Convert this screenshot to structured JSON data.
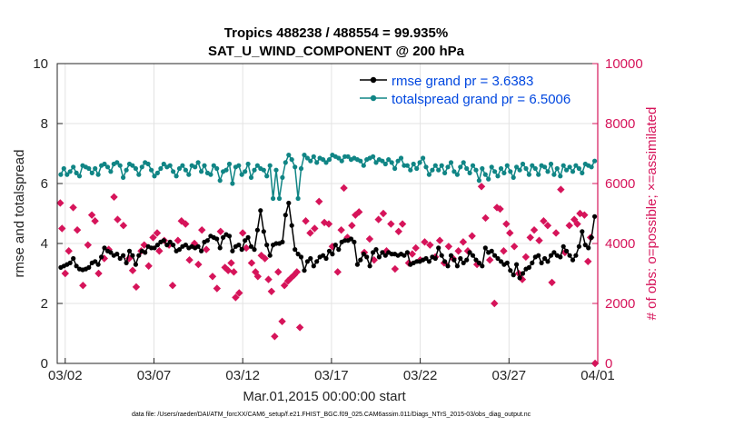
{
  "chart_data": {
    "type": "line",
    "title_line1": "Tropics 488238 / 488554 = 99.935%",
    "title_line2": "SAT_U_WIND_COMPONENT @ 200 hPa",
    "xlabel": "Mar.01,2015 00:00:00 start",
    "ylabel_left": "rmse and totalspread",
    "ylabel_right": "# of obs: o=possible; ×=assimilated",
    "footer": "data file: /Users/raeder/DAI/ATM_forcXX/CAM6_setup/f.e21.FHIST_BGC.f09_025.CAM6assim.011/Diags_NTrS_2015-03/obs_diag_output.nc",
    "x_tick_labels": [
      "03/02",
      "03/07",
      "03/12",
      "03/17",
      "03/22",
      "03/27",
      "04/01"
    ],
    "x_tick_days": [
      1,
      6,
      11,
      16,
      21,
      26,
      31
    ],
    "xlim_days": [
      0.55,
      31
    ],
    "ylim_left": [
      0,
      10
    ],
    "yticks_left": [
      "0",
      "2",
      "4",
      "6",
      "8",
      "10"
    ],
    "ylim_right": [
      0,
      10000
    ],
    "yticks_right": [
      "0",
      "2000",
      "4000",
      "6000",
      "8000",
      "10000"
    ],
    "grid": true,
    "legend_position": "top-right",
    "colors": {
      "rmse": "#000000",
      "spread": "#108585",
      "obs": "#d6145a",
      "legend_text": "#0047e0",
      "right_axis": "#d6145a"
    },
    "series": [
      {
        "name": "rmse grand pr = 3.6383",
        "key": "rmse",
        "values": [
          3.2,
          3.25,
          3.3,
          3.35,
          3.5,
          3.25,
          3.15,
          3.12,
          3.15,
          3.2,
          3.35,
          3.4,
          3.3,
          3.55,
          3.85,
          3.75,
          3.7,
          3.6,
          3.65,
          3.5,
          3.6,
          3.35,
          3.75,
          3.6,
          3.3,
          3.6,
          3.75,
          3.7,
          3.9,
          3.85,
          3.85,
          3.95,
          4.05,
          4.1,
          3.95,
          4.05,
          3.95,
          3.75,
          3.8,
          3.9,
          3.95,
          3.85,
          3.9,
          3.85,
          3.9,
          3.75,
          4.05,
          4.1,
          4.25,
          4.2,
          4.15,
          3.85,
          4.2,
          4.3,
          4.25,
          3.75,
          3.9,
          3.95,
          3.8,
          4.1,
          4.2,
          3.9,
          3.8,
          4.45,
          5.1,
          4.4,
          3.95,
          3.6,
          3.95,
          4.0,
          4.0,
          4.05,
          4.95,
          5.35,
          4.6,
          3.8,
          3.65,
          3.55,
          3.1,
          3.4,
          3.5,
          3.25,
          3.4,
          3.55,
          3.6,
          3.5,
          3.75,
          3.65,
          3.95,
          3.8,
          4.05,
          4.1,
          4.1,
          4.15,
          4.05,
          3.3,
          3.45,
          3.65,
          3.55,
          3.25,
          3.7,
          3.8,
          3.55,
          3.7,
          3.6,
          3.7,
          3.65,
          3.65,
          3.6,
          3.65,
          3.6,
          3.7,
          3.3,
          3.35,
          3.4,
          3.4,
          3.45,
          3.5,
          3.4,
          3.55,
          3.5,
          3.85,
          3.6,
          3.4,
          3.25,
          3.6,
          3.45,
          3.25,
          3.5,
          3.35,
          3.45,
          3.7,
          3.6,
          3.45,
          3.35,
          3.25,
          3.85,
          3.7,
          3.75,
          3.6,
          3.5,
          3.4,
          3.3,
          3.35,
          3.1,
          2.95,
          3.3,
          2.85,
          3.0,
          3.15,
          3.2,
          3.35,
          3.55,
          3.6,
          3.35,
          3.5,
          3.4,
          3.6,
          3.7,
          3.6,
          3.55,
          3.9,
          3.75,
          3.6,
          3.45,
          3.6,
          3.9,
          4.4,
          3.95,
          3.85,
          4.2,
          4.9
        ]
      },
      {
        "name": "totalspread grand pr = 6.5006",
        "key": "spread",
        "values": [
          6.3,
          6.5,
          6.3,
          6.4,
          6.55,
          6.35,
          6.25,
          6.6,
          6.55,
          6.5,
          6.35,
          6.5,
          6.3,
          6.6,
          6.65,
          6.55,
          6.4,
          6.65,
          6.7,
          6.6,
          6.2,
          6.45,
          6.65,
          6.6,
          6.5,
          6.3,
          6.55,
          6.7,
          6.65,
          6.45,
          6.25,
          6.35,
          6.5,
          6.65,
          6.55,
          6.6,
          6.4,
          6.25,
          6.5,
          6.6,
          6.45,
          6.3,
          6.6,
          6.55,
          6.7,
          6.4,
          6.6,
          6.35,
          6.3,
          6.6,
          6.5,
          6.1,
          6.4,
          6.45,
          6.65,
          6.0,
          6.55,
          6.6,
          6.3,
          6.4,
          6.65,
          6.2,
          6.45,
          6.6,
          6.5,
          6.45,
          6.25,
          6.6,
          5.5,
          6.45,
          5.5,
          6.2,
          6.7,
          6.95,
          6.8,
          6.55,
          5.5,
          6.5,
          6.95,
          6.85,
          6.75,
          6.9,
          6.7,
          6.85,
          6.8,
          6.7,
          6.8,
          6.95,
          6.9,
          6.85,
          6.75,
          6.9,
          6.9,
          6.8,
          6.85,
          6.8,
          6.75,
          6.6,
          6.8,
          6.85,
          6.9,
          6.7,
          6.8,
          6.75,
          6.65,
          6.8,
          6.7,
          6.5,
          6.75,
          6.85,
          6.6,
          6.6,
          6.45,
          6.65,
          6.5,
          6.7,
          6.85,
          6.55,
          6.3,
          6.45,
          6.6,
          6.45,
          6.6,
          6.35,
          6.55,
          6.7,
          6.4,
          6.3,
          6.55,
          6.7,
          6.5,
          6.35,
          6.6,
          6.45,
          6.1,
          6.5,
          6.3,
          6.15,
          6.55,
          6.4,
          6.25,
          6.5,
          6.35,
          6.6,
          6.4,
          6.2,
          6.55,
          6.45,
          6.65,
          6.5,
          6.3,
          6.6,
          6.5,
          6.3,
          6.6,
          6.55,
          6.4,
          6.65,
          6.3,
          6.5,
          6.25,
          6.6,
          6.45,
          6.55,
          6.4,
          6.6,
          6.5,
          6.35,
          6.65,
          6.6,
          6.55,
          6.75
        ]
      }
    ],
    "assimilated_obs": [
      [
        0.72,
        5350
      ],
      [
        0.82,
        4500
      ],
      [
        1.0,
        3000
      ],
      [
        1.2,
        3750
      ],
      [
        1.45,
        5200
      ],
      [
        1.68,
        4450
      ],
      [
        2.0,
        2600
      ],
      [
        2.28,
        3950
      ],
      [
        2.5,
        4950
      ],
      [
        2.68,
        4750
      ],
      [
        2.88,
        3000
      ],
      [
        3.2,
        3500
      ],
      [
        3.45,
        3800
      ],
      [
        3.75,
        5550
      ],
      [
        3.95,
        4800
      ],
      [
        4.28,
        4600
      ],
      [
        4.6,
        3500
      ],
      [
        4.8,
        3100
      ],
      [
        5.0,
        2550
      ],
      [
        5.28,
        3750
      ],
      [
        5.45,
        3950
      ],
      [
        5.7,
        3250
      ],
      [
        5.95,
        4200
      ],
      [
        6.18,
        4350
      ],
      [
        6.3,
        3750
      ],
      [
        6.58,
        4100
      ],
      [
        6.85,
        3950
      ],
      [
        7.05,
        2600
      ],
      [
        7.35,
        4100
      ],
      [
        7.55,
        4750
      ],
      [
        7.78,
        4650
      ],
      [
        8.0,
        3450
      ],
      [
        8.28,
        4000
      ],
      [
        8.5,
        3300
      ],
      [
        8.7,
        4450
      ],
      [
        8.95,
        3800
      ],
      [
        9.3,
        2900
      ],
      [
        9.55,
        2500
      ],
      [
        9.75,
        4400
      ],
      [
        10.0,
        3200
      ],
      [
        10.18,
        3100
      ],
      [
        10.35,
        3350
      ],
      [
        10.5,
        3050
      ],
      [
        10.6,
        2200
      ],
      [
        10.8,
        2350
      ],
      [
        11.0,
        4350
      ],
      [
        11.2,
        3850
      ],
      [
        11.5,
        3350
      ],
      [
        11.72,
        3050
      ],
      [
        11.85,
        2900
      ],
      [
        12.05,
        3600
      ],
      [
        12.25,
        3500
      ],
      [
        12.45,
        2800
      ],
      [
        12.62,
        2400
      ],
      [
        12.8,
        900
      ],
      [
        13.0,
        3050
      ],
      [
        13.22,
        1400
      ],
      [
        13.35,
        2600
      ],
      [
        13.55,
        2750
      ],
      [
        13.72,
        2850
      ],
      [
        13.9,
        2950
      ],
      [
        14.05,
        3050
      ],
      [
        14.22,
        1200
      ],
      [
        14.55,
        4750
      ],
      [
        14.8,
        4350
      ],
      [
        15.05,
        4500
      ],
      [
        15.3,
        5400
      ],
      [
        15.6,
        4700
      ],
      [
        15.85,
        4650
      ],
      [
        16.05,
        3900
      ],
      [
        16.35,
        3050
      ],
      [
        16.55,
        4450
      ],
      [
        16.7,
        5850
      ],
      [
        16.9,
        4200
      ],
      [
        17.15,
        4600
      ],
      [
        17.35,
        4950
      ],
      [
        17.55,
        5050
      ],
      [
        17.85,
        3700
      ],
      [
        18.15,
        4150
      ],
      [
        18.4,
        3450
      ],
      [
        18.65,
        4800
      ],
      [
        18.92,
        5000
      ],
      [
        19.1,
        3750
      ],
      [
        19.35,
        4650
      ],
      [
        19.58,
        3150
      ],
      [
        19.78,
        4400
      ],
      [
        20.0,
        4650
      ],
      [
        20.35,
        3350
      ],
      [
        20.55,
        3650
      ],
      [
        20.75,
        3850
      ],
      [
        21.0,
        3450
      ],
      [
        21.25,
        4050
      ],
      [
        21.55,
        3950
      ],
      [
        21.85,
        3550
      ],
      [
        22.1,
        4100
      ],
      [
        22.35,
        3350
      ],
      [
        22.6,
        3900
      ],
      [
        22.85,
        3500
      ],
      [
        23.15,
        3750
      ],
      [
        23.42,
        4050
      ],
      [
        23.68,
        3750
      ],
      [
        23.92,
        4250
      ],
      [
        24.2,
        3300
      ],
      [
        24.45,
        5900
      ],
      [
        24.68,
        4850
      ],
      [
        24.92,
        3450
      ],
      [
        25.18,
        2000
      ],
      [
        25.32,
        5200
      ],
      [
        25.5,
        5150
      ],
      [
        25.7,
        3750
      ],
      [
        25.85,
        4650
      ],
      [
        26.05,
        4350
      ],
      [
        26.3,
        3900
      ],
      [
        26.55,
        3000
      ],
      [
        26.75,
        2800
      ],
      [
        26.95,
        3550
      ],
      [
        27.2,
        4200
      ],
      [
        27.42,
        4450
      ],
      [
        27.7,
        4100
      ],
      [
        27.95,
        4750
      ],
      [
        28.18,
        4600
      ],
      [
        28.42,
        2700
      ],
      [
        28.65,
        4350
      ],
      [
        28.92,
        5800
      ],
      [
        29.15,
        3700
      ],
      [
        29.4,
        4600
      ],
      [
        29.68,
        4800
      ],
      [
        29.85,
        4650
      ],
      [
        30.0,
        5000
      ],
      [
        30.25,
        4950
      ],
      [
        30.45,
        3400
      ],
      [
        30.6,
        4200
      ],
      [
        30.85,
        0
      ]
    ]
  }
}
